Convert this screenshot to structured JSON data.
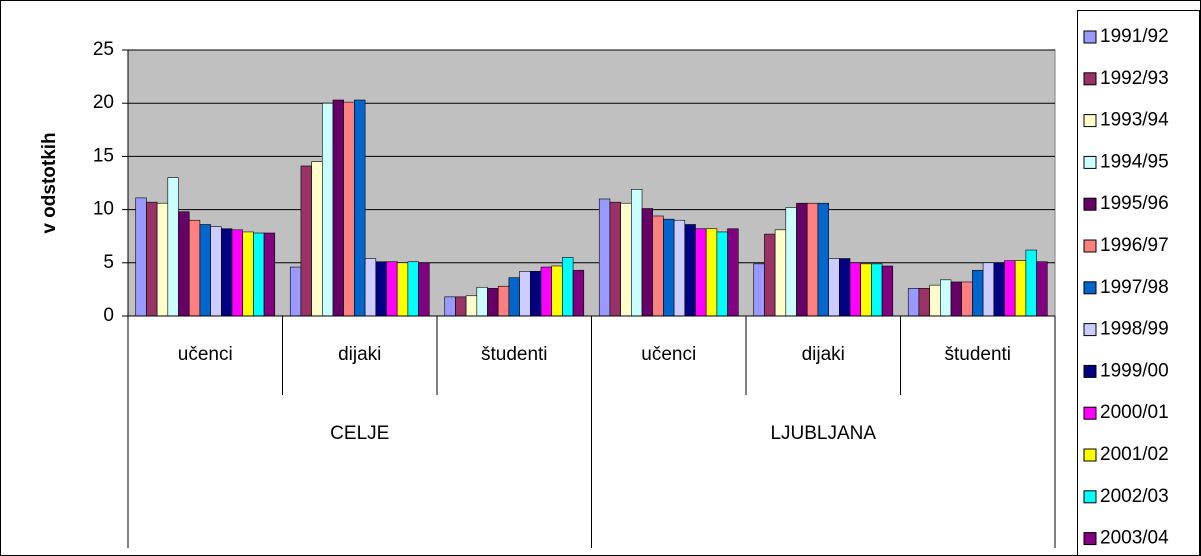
{
  "chart_data": {
    "type": "bar",
    "y_label": "v odstotkih",
    "categories": [
      "učenci",
      "dijaki",
      "študenti",
      "učenci",
      "dijaki",
      "študenti"
    ],
    "category_groups": [
      "CELJE",
      "LJUBLJANA"
    ],
    "ylim": [
      0,
      25
    ],
    "yticks": [
      0,
      5,
      10,
      15,
      20,
      25
    ],
    "grid": true,
    "legend": "right",
    "series": [
      {
        "name": "1991/92",
        "color": "#9999ff",
        "values": [
          11.1,
          4.6,
          1.8,
          11.0,
          4.9,
          2.6
        ]
      },
      {
        "name": "1992/93",
        "color": "#993366",
        "values": [
          10.7,
          14.1,
          1.8,
          10.7,
          7.7,
          2.6
        ]
      },
      {
        "name": "1993/94",
        "color": "#ffffcc",
        "values": [
          10.6,
          14.5,
          1.9,
          10.6,
          8.1,
          2.9
        ]
      },
      {
        "name": "1994/95",
        "color": "#ccffff",
        "values": [
          13.0,
          20.0,
          2.7,
          11.9,
          10.2,
          3.4
        ]
      },
      {
        "name": "1995/96",
        "color": "#660066",
        "values": [
          9.8,
          20.3,
          2.6,
          10.1,
          10.6,
          3.2
        ]
      },
      {
        "name": "1996/97",
        "color": "#ff8080",
        "values": [
          9.0,
          20.1,
          2.8,
          9.4,
          10.6,
          3.2
        ]
      },
      {
        "name": "1997/98",
        "color": "#0066cc",
        "values": [
          8.6,
          20.3,
          3.6,
          9.1,
          10.6,
          4.3
        ]
      },
      {
        "name": "1998/99",
        "color": "#ccccff",
        "values": [
          8.4,
          5.4,
          4.2,
          9.0,
          5.4,
          5.0
        ]
      },
      {
        "name": "1999/00",
        "color": "#000080",
        "values": [
          8.2,
          5.1,
          4.2,
          8.6,
          5.4,
          5.0
        ]
      },
      {
        "name": "2000/01",
        "color": "#ff00ff",
        "values": [
          8.1,
          5.1,
          4.6,
          8.2,
          5.0,
          5.2
        ]
      },
      {
        "name": "2001/02",
        "color": "#ffff00",
        "values": [
          7.9,
          5.0,
          4.7,
          8.2,
          4.9,
          5.2
        ]
      },
      {
        "name": "2002/03",
        "color": "#00ffff",
        "values": [
          7.8,
          5.1,
          5.5,
          7.9,
          4.9,
          6.2
        ]
      },
      {
        "name": "2003/04",
        "color": "#800080",
        "values": [
          7.8,
          5.0,
          4.3,
          8.2,
          4.7,
          5.1
        ]
      }
    ]
  }
}
